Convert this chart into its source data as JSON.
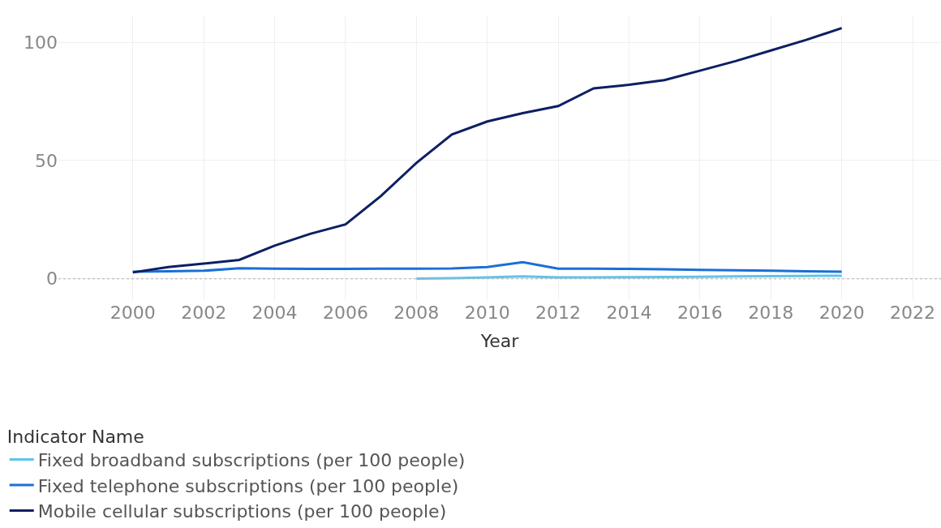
{
  "chart_data": {
    "type": "line",
    "xlabel": "Year",
    "legend_title": "Indicator Name",
    "legend": "bottom",
    "grid": true,
    "marker": "none",
    "line_style": "solid",
    "xlim": [
      1997.9,
      2022.8
    ],
    "xticks": [
      2000,
      2002,
      2004,
      2006,
      2008,
      2010,
      2012,
      2014,
      2016,
      2018,
      2020,
      2022
    ],
    "ylim": [
      -9,
      111
    ],
    "yticks": [
      0,
      50,
      100
    ],
    "ref_lines": [
      {
        "axis": "y",
        "value": 0,
        "color": "#b0b0b0",
        "line_style": "dotted"
      }
    ],
    "series": [
      {
        "name": "Fixed broadband subscriptions (per 100 people)",
        "color": "#5fc4ea",
        "x": [
          2008,
          2009,
          2010,
          2011,
          2012,
          2013,
          2014,
          2015,
          2016,
          2017,
          2018,
          2019,
          2020
        ],
        "values": [
          0.1,
          0.3,
          0.6,
          1.0,
          0.6,
          0.6,
          0.7,
          0.8,
          0.9,
          1.0,
          1.1,
          1.2,
          1.3
        ]
      },
      {
        "name": "Fixed telephone subscriptions (per 100 people)",
        "color": "#1a6fd6",
        "x": [
          2000,
          2001,
          2002,
          2003,
          2004,
          2005,
          2006,
          2007,
          2008,
          2009,
          2010,
          2011,
          2012,
          2013,
          2014,
          2015,
          2016,
          2017,
          2018,
          2019,
          2020
        ],
        "values": [
          3,
          3.2,
          3.4,
          4.5,
          4.3,
          4.2,
          4.2,
          4.3,
          4.3,
          4.4,
          5,
          7,
          4.3,
          4.3,
          4.2,
          4.0,
          3.8,
          3.6,
          3.4,
          3.2,
          3.0
        ]
      },
      {
        "name": "Mobile cellular subscriptions (per 100 people)",
        "color": "#0d1f63",
        "x": [
          2000,
          2001,
          2002,
          2003,
          2004,
          2005,
          2006,
          2007,
          2008,
          2009,
          2010,
          2011,
          2012,
          2013,
          2014,
          2015,
          2016,
          2017,
          2018,
          2019,
          2020
        ],
        "values": [
          2.7,
          5,
          6.4,
          8,
          14,
          19,
          23,
          35,
          49,
          61,
          66.5,
          70,
          73,
          80.5,
          82,
          84,
          88,
          92,
          96.5,
          101,
          106
        ]
      }
    ]
  }
}
